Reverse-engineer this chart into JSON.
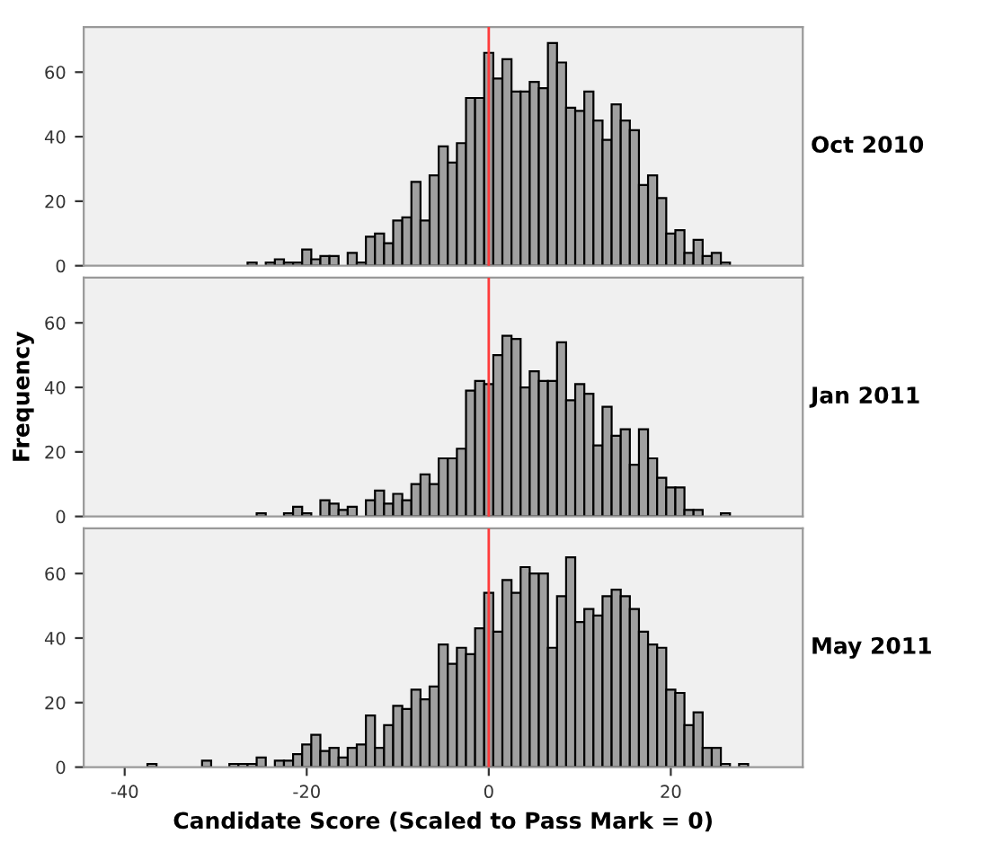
{
  "chart_data": [
    {
      "type": "histogram",
      "title": "Oct 2010",
      "color": "#a0a0a0",
      "bins": [
        -26.5,
        -25.5,
        -24.5,
        -23.5,
        -22.5,
        -21.5,
        -20.5,
        -19.5,
        -18.5,
        -17.5,
        -16.5,
        -15.5,
        -14.5,
        -13.5,
        -12.5,
        -11.5,
        -10.5,
        -9.5,
        -8.5,
        -7.5,
        -6.5,
        -5.5,
        -4.5,
        -3.5,
        -2.5,
        -1.5,
        -0.5,
        0.5,
        1.5,
        2.5,
        3.5,
        4.5,
        5.5,
        6.5,
        7.5,
        8.5,
        9.5,
        10.5,
        11.5,
        12.5,
        13.5,
        14.5,
        15.5,
        16.5,
        17.5,
        18.5,
        19.5,
        20.5,
        21.5,
        22.5,
        23.5,
        24.5,
        25.5,
        26.5
      ],
      "values": [
        1,
        0,
        1,
        2,
        1,
        1,
        5,
        2,
        3,
        3,
        0,
        4,
        1,
        9,
        10,
        7,
        14,
        15,
        26,
        14,
        28,
        37,
        32,
        38,
        52,
        52,
        66,
        58,
        64,
        54,
        54,
        57,
        55,
        69,
        63,
        49,
        48,
        54,
        45,
        39,
        50,
        45,
        42,
        25,
        28,
        21,
        10,
        11,
        4,
        8,
        3,
        4,
        1
      ],
      "xlim": [
        -44.5,
        34.5
      ],
      "ylim": [
        0,
        74
      ],
      "yticks": [
        0,
        20,
        40,
        60
      ],
      "tick_labels": "y",
      "ref_lines": [
        {
          "axis": "x",
          "value": 0,
          "color": "#ff3b3b"
        }
      ]
    },
    {
      "type": "histogram",
      "title": "Jan 2011",
      "ylabel": "Frequency",
      "color": "#a0a0a0",
      "bins": [
        -25.5,
        -24.5,
        -23.5,
        -22.5,
        -21.5,
        -20.5,
        -19.5,
        -18.5,
        -17.5,
        -16.5,
        -15.5,
        -14.5,
        -13.5,
        -12.5,
        -11.5,
        -10.5,
        -9.5,
        -8.5,
        -7.5,
        -6.5,
        -5.5,
        -4.5,
        -3.5,
        -2.5,
        -1.5,
        -0.5,
        0.5,
        1.5,
        2.5,
        3.5,
        4.5,
        5.5,
        6.5,
        7.5,
        8.5,
        9.5,
        10.5,
        11.5,
        12.5,
        13.5,
        14.5,
        15.5,
        16.5,
        17.5,
        18.5,
        19.5,
        20.5,
        21.5,
        22.5,
        23.5,
        24.5,
        25.5,
        26.5
      ],
      "values": [
        1,
        0,
        0,
        1,
        3,
        1,
        0,
        5,
        4,
        2,
        3,
        0,
        5,
        8,
        4,
        7,
        5,
        10,
        13,
        10,
        18,
        18,
        21,
        39,
        42,
        41,
        50,
        56,
        55,
        40,
        45,
        42,
        42,
        54,
        36,
        41,
        38,
        22,
        34,
        25,
        27,
        16,
        27,
        18,
        12,
        9,
        9,
        2,
        2,
        0,
        0,
        1
      ],
      "xlim": [
        -44.5,
        34.5
      ],
      "ylim": [
        0,
        74
      ],
      "yticks": [
        0,
        20,
        40,
        60
      ],
      "tick_labels": "y",
      "ref_lines": [
        {
          "axis": "x",
          "value": 0,
          "color": "#ff3b3b"
        }
      ]
    },
    {
      "type": "histogram",
      "title": "May 2011",
      "xlabel": "Candidate Score (Scaled to Pass Mark = 0)",
      "color": "#a0a0a0",
      "bins": [
        -37.5,
        -36.5,
        -35.5,
        -34.5,
        -33.5,
        -32.5,
        -31.5,
        -30.5,
        -29.5,
        -28.5,
        -27.5,
        -26.5,
        -25.5,
        -24.5,
        -23.5,
        -22.5,
        -21.5,
        -20.5,
        -19.5,
        -18.5,
        -17.5,
        -16.5,
        -15.5,
        -14.5,
        -13.5,
        -12.5,
        -11.5,
        -10.5,
        -9.5,
        -8.5,
        -7.5,
        -6.5,
        -5.5,
        -4.5,
        -3.5,
        -2.5,
        -1.5,
        -0.5,
        0.5,
        1.5,
        2.5,
        3.5,
        4.5,
        5.5,
        6.5,
        7.5,
        8.5,
        9.5,
        10.5,
        11.5,
        12.5,
        13.5,
        14.5,
        15.5,
        16.5,
        17.5,
        18.5,
        19.5,
        20.5,
        21.5,
        22.5,
        23.5,
        24.5,
        25.5,
        26.5,
        27.5,
        28.5
      ],
      "values": [
        1,
        0,
        0,
        0,
        0,
        0,
        2,
        0,
        0,
        1,
        1,
        1,
        3,
        0,
        2,
        2,
        4,
        7,
        10,
        5,
        6,
        3,
        6,
        7,
        16,
        6,
        13,
        19,
        18,
        24,
        21,
        25,
        38,
        32,
        37,
        35,
        43,
        54,
        42,
        58,
        54,
        62,
        60,
        60,
        37,
        53,
        65,
        45,
        49,
        47,
        53,
        55,
        53,
        49,
        42,
        38,
        37,
        24,
        23,
        13,
        17,
        6,
        6,
        1,
        0,
        1
      ],
      "xlim": [
        -44.5,
        34.5
      ],
      "xticks": [
        -40,
        -20,
        0,
        20
      ],
      "ylim": [
        0,
        74
      ],
      "yticks": [
        0,
        20,
        40,
        60
      ],
      "ref_lines": [
        {
          "axis": "x",
          "value": 0,
          "color": "#ff3b3b"
        }
      ]
    }
  ]
}
